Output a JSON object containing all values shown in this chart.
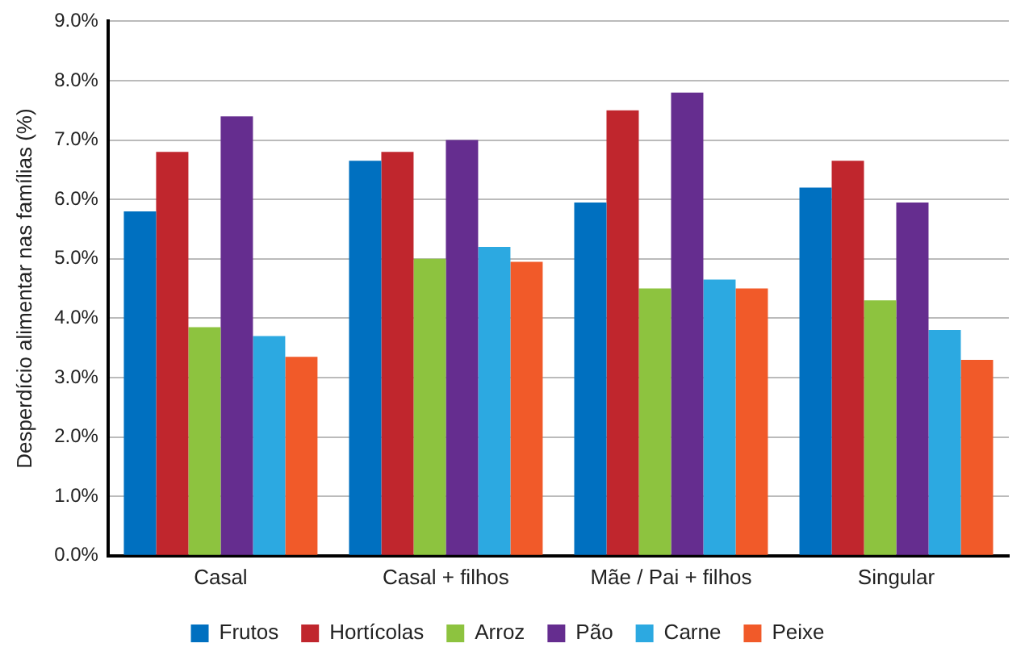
{
  "chart_data": {
    "type": "bar",
    "ylabel": "Desperdício alimentar nas famílias (%)",
    "categories": [
      "Casal",
      "Casal + filhos",
      "Mãe / Pai + filhos",
      "Singular"
    ],
    "series": [
      {
        "name": "Frutos",
        "color": "#0070c0",
        "values": [
          5.8,
          6.65,
          5.95,
          6.2
        ]
      },
      {
        "name": "Hortícolas",
        "color": "#c0262d",
        "values": [
          6.8,
          6.8,
          7.5,
          6.65
        ]
      },
      {
        "name": "Arroz",
        "color": "#8dc33f",
        "values": [
          3.85,
          5.0,
          4.5,
          4.3
        ]
      },
      {
        "name": "Pão",
        "color": "#652d8f",
        "values": [
          7.4,
          7.0,
          7.8,
          5.95
        ]
      },
      {
        "name": "Carne",
        "color": "#2ca9e1",
        "values": [
          3.7,
          5.2,
          4.65,
          3.8
        ]
      },
      {
        "name": "Peixe",
        "color": "#f15a29",
        "values": [
          3.35,
          4.95,
          4.5,
          3.3
        ]
      }
    ],
    "ylim": [
      0,
      9
    ],
    "yticks": [
      {
        "value": 0,
        "label": "0.0%"
      },
      {
        "value": 1,
        "label": "1.0%"
      },
      {
        "value": 2,
        "label": "2.0%"
      },
      {
        "value": 3,
        "label": "3.0%"
      },
      {
        "value": 4,
        "label": "4.0%"
      },
      {
        "value": 5,
        "label": "5.0%"
      },
      {
        "value": 6,
        "label": "6.0%"
      },
      {
        "value": 7,
        "label": "7.0%"
      },
      {
        "value": 8,
        "label": "8.0%"
      },
      {
        "value": 9,
        "label": "9.0%"
      }
    ],
    "grid": "y",
    "legend": "bottom"
  }
}
